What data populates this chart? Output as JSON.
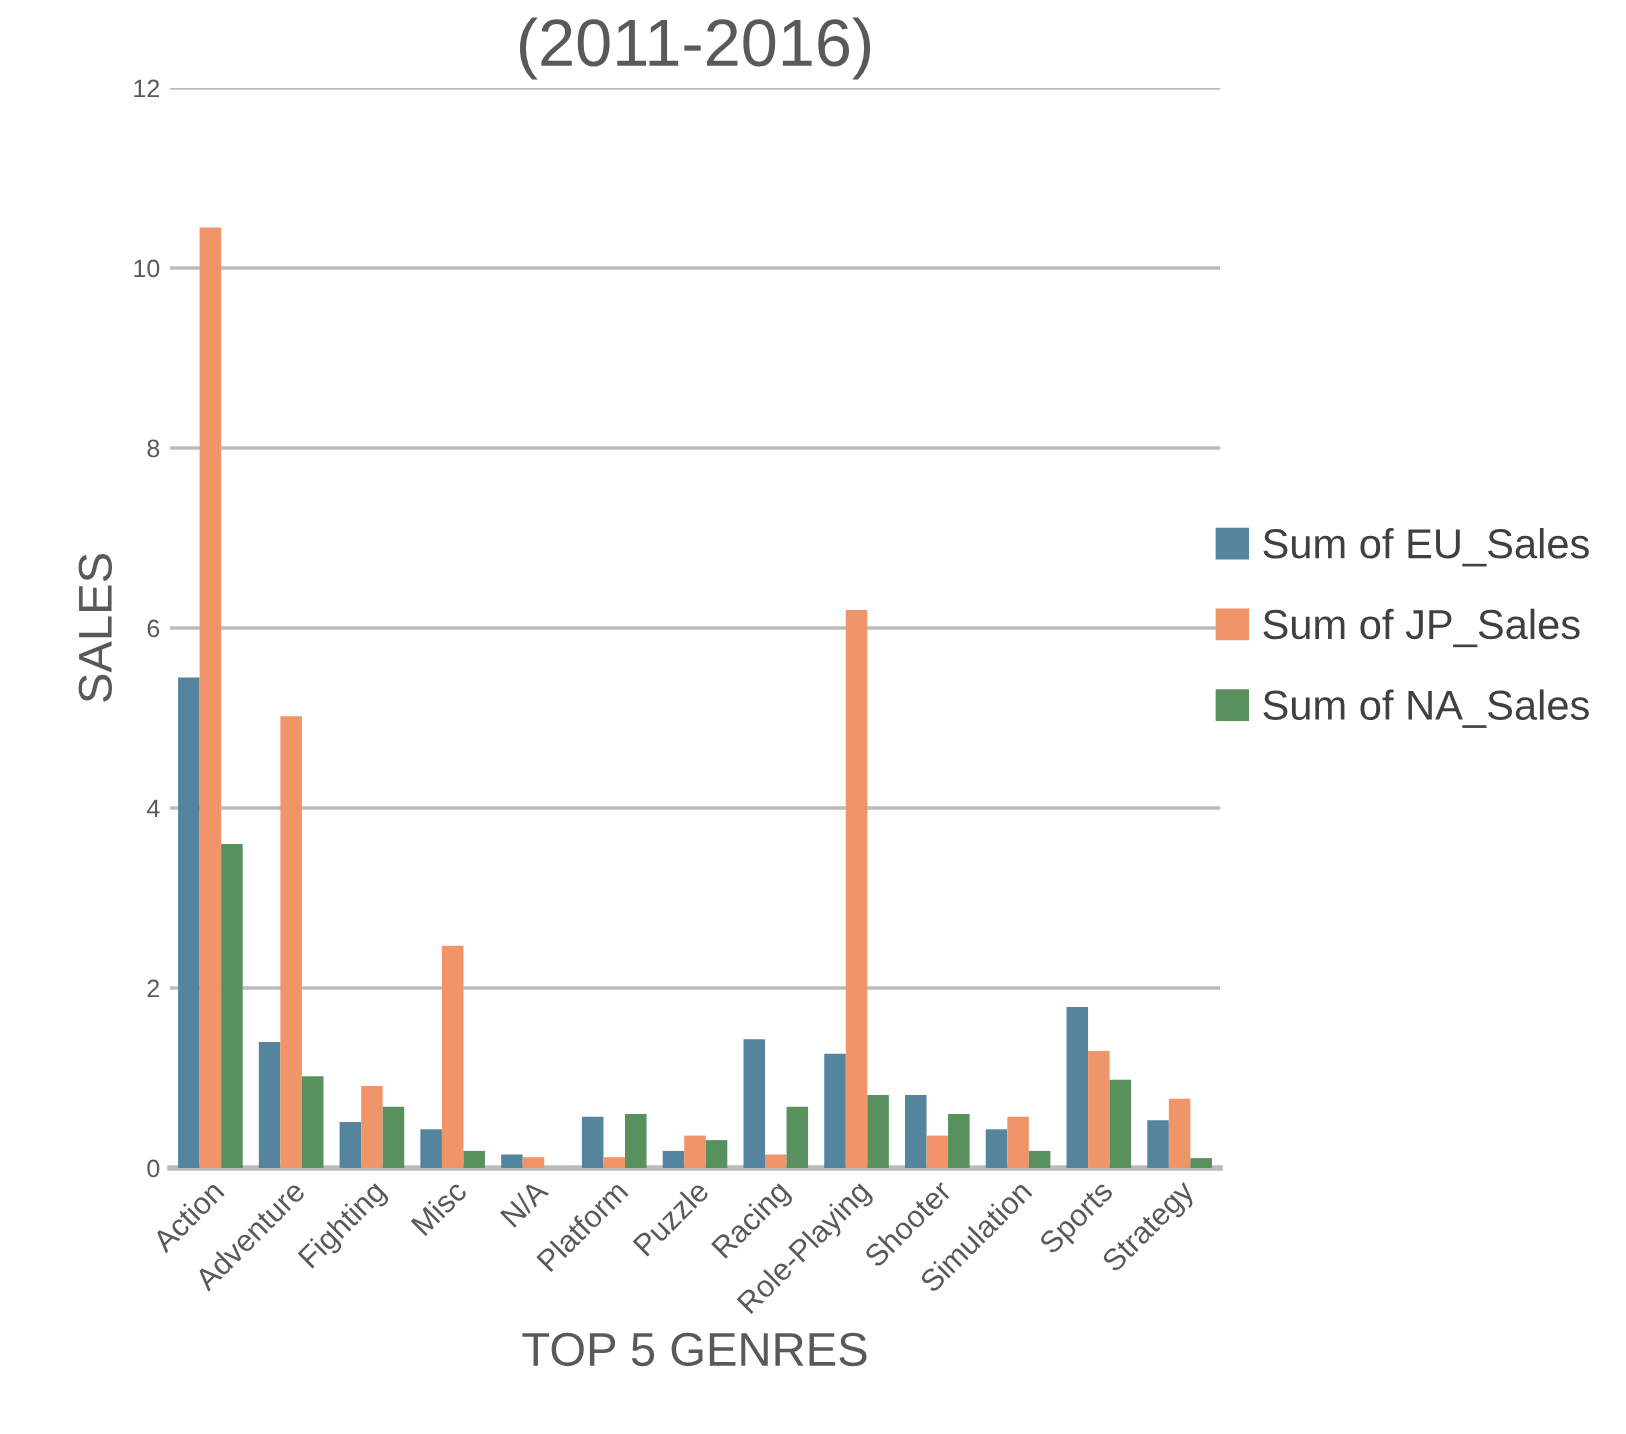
{
  "chart_data": {
    "type": "bar",
    "title": "(2011-2016)",
    "xlabel": "TOP 5 GENRES",
    "ylabel": "SALES",
    "categories": [
      "Action",
      "Adventure",
      "Fighting",
      "Misc",
      "N/A",
      "Platform",
      "Puzzle",
      "Racing",
      "Role-Playing",
      "Shooter",
      "Simulation",
      "Sports",
      "Strategy"
    ],
    "series": [
      {
        "name": "Sum of EU_Sales",
        "color": "#55849f",
        "values": [
          5.45,
          1.4,
          0.51,
          0.43,
          0.15,
          0.57,
          0.19,
          1.43,
          1.27,
          0.81,
          0.43,
          1.79,
          0.53
        ]
      },
      {
        "name": "Sum of JP_Sales",
        "color": "#f0956a",
        "values": [
          10.45,
          5.02,
          0.91,
          2.47,
          0.12,
          0.12,
          0.36,
          0.15,
          6.2,
          0.36,
          0.57,
          1.3,
          0.77
        ]
      },
      {
        "name": "Sum of NA_Sales",
        "color": "#58905e",
        "values": [
          3.6,
          1.02,
          0.68,
          0.19,
          0,
          0.6,
          0.31,
          0.68,
          0.81,
          0.6,
          0.19,
          0.98,
          0.11
        ]
      }
    ],
    "ylim": [
      0,
      12
    ],
    "yticks": [
      0,
      2,
      4,
      6,
      8,
      10,
      12
    ],
    "grid": "y",
    "legend": "right"
  }
}
